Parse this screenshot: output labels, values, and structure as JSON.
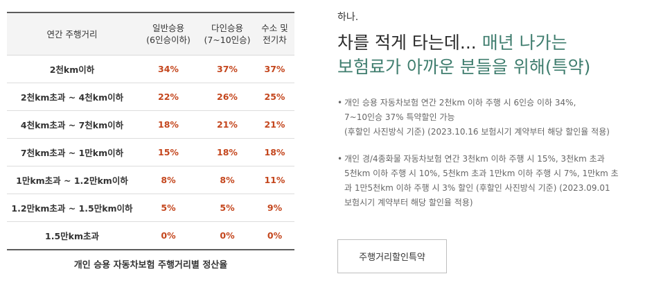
{
  "table": {
    "headers": {
      "range": "연간 주행거리",
      "general": [
        "일반승용",
        "(6인승이하)"
      ],
      "multi": [
        "다인승용",
        "(7~10인승)"
      ],
      "eco": [
        "수소 및",
        "전기차"
      ]
    },
    "rows": [
      {
        "range": "2천km이하",
        "general": "34%",
        "multi": "37%",
        "eco": "37%"
      },
      {
        "range": "2천km초과 ~ 4천km이하",
        "general": "22%",
        "multi": "26%",
        "eco": "25%"
      },
      {
        "range": "4천km초과 ~ 7천km이하",
        "general": "18%",
        "multi": "21%",
        "eco": "21%"
      },
      {
        "range": "7천km초과 ~ 1만km이하",
        "general": "15%",
        "multi": "18%",
        "eco": "18%"
      },
      {
        "range": "1만km초과 ~ 1.2만km이하",
        "general": "8%",
        "multi": "8%",
        "eco": "11%"
      },
      {
        "range": "1.2만km초과 ~ 1.5만km이하",
        "general": "5%",
        "multi": "5%",
        "eco": "9%"
      },
      {
        "range": "1.5만km초과",
        "general": "0%",
        "multi": "0%",
        "eco": "0%"
      }
    ],
    "caption": "개인 승용 자동차보험 주행거리별 정산율",
    "rate_color": "#c4461d"
  },
  "info": {
    "eyebrow": "하나.",
    "headline_line1_dark": "차를 적게 타는데... ",
    "headline_line1_accent": "매년 나가는",
    "headline_line2_accent": "보험료가 아까운 분들을 위해(특약)",
    "accent_color": "#3f7d6e",
    "bullet": "•",
    "notes": [
      [
        "개인 승용 자동차보험 연간 2천km 이하 주행 시 6인승 이하 34%,",
        "7~10인승 37% 특약할인 가능",
        "(후할인 사진방식 기준) (2023.10.16 보험시기 계약부터 해당 할인율 적용)"
      ],
      [
        "개인 경/4종화물 자동차보험 연간 3천km 이하 주행 시 15%, 3천km 초과",
        "5천km 이하 주행 시 10%, 5천km 초과 1만km 이하 주행 시 7%, 1만km 초",
        "과 1만5천km 이하 주행 시 3% 할인 (후할인 사진방식 기준) (2023.09.01",
        "보험시기 계약부터 해당 할인율 적용)"
      ]
    ],
    "cta_label": "주행거리할인특약"
  }
}
